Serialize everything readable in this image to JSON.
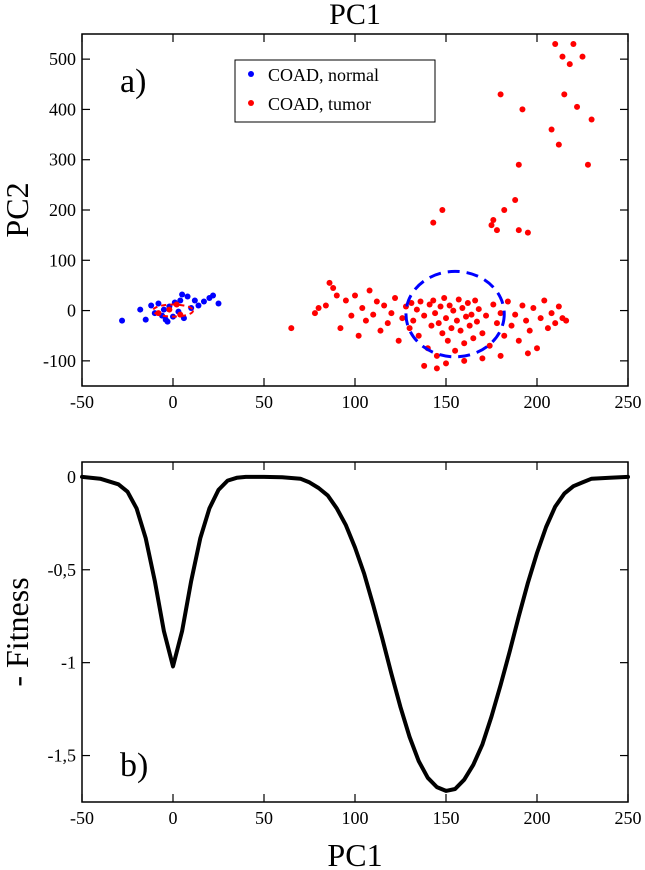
{
  "top_label": "PC1",
  "chart_data": [
    {
      "type": "scatter",
      "panel_label": "a)",
      "xlabel": "",
      "ylabel": "PC2",
      "xlim": [
        -50,
        250
      ],
      "ylim": [
        -150,
        550
      ],
      "xticks": [
        -50,
        0,
        50,
        100,
        150,
        200,
        250
      ],
      "yticks": [
        -100,
        0,
        100,
        200,
        300,
        400,
        500
      ],
      "xtick_labels": [
        "-50",
        "0",
        "50",
        "100",
        "150",
        "200",
        "250"
      ],
      "ytick_labels": [
        "-100",
        "0",
        "100",
        "200",
        "300",
        "400",
        "500"
      ],
      "legend_position": "top-center",
      "series": [
        {
          "name": "COAD, normal",
          "color": "#0000ff",
          "points": [
            [
              -28,
              -20
            ],
            [
              -18,
              2
            ],
            [
              -15,
              -18
            ],
            [
              -12,
              10
            ],
            [
              -10,
              -5
            ],
            [
              -8,
              14
            ],
            [
              -6,
              -10
            ],
            [
              -5,
              2
            ],
            [
              -3,
              -22
            ],
            [
              -2,
              8
            ],
            [
              0,
              -12
            ],
            [
              1,
              16
            ],
            [
              3,
              -2
            ],
            [
              4,
              20
            ],
            [
              6,
              -15
            ],
            [
              8,
              28
            ],
            [
              10,
              5
            ],
            [
              12,
              20
            ],
            [
              14,
              10
            ],
            [
              17,
              18
            ],
            [
              20,
              25
            ],
            [
              22,
              30
            ],
            [
              25,
              14
            ],
            [
              5,
              32
            ],
            [
              -4,
              -18
            ]
          ]
        },
        {
          "name": "COAD, tumor",
          "color": "#ff0000",
          "points": [
            [
              -8,
              -5
            ],
            [
              -2,
              2
            ],
            [
              4,
              -8
            ],
            [
              2,
              12
            ],
            [
              65,
              -35
            ],
            [
              78,
              -5
            ],
            [
              80,
              5
            ],
            [
              84,
              10
            ],
            [
              86,
              55
            ],
            [
              88,
              45
            ],
            [
              90,
              30
            ],
            [
              92,
              -35
            ],
            [
              95,
              20
            ],
            [
              98,
              -10
            ],
            [
              100,
              30
            ],
            [
              102,
              -50
            ],
            [
              104,
              5
            ],
            [
              106,
              -20
            ],
            [
              108,
              40
            ],
            [
              110,
              -8
            ],
            [
              112,
              18
            ],
            [
              114,
              -40
            ],
            [
              116,
              10
            ],
            [
              118,
              -25
            ],
            [
              120,
              -5
            ],
            [
              122,
              25
            ],
            [
              124,
              -60
            ],
            [
              126,
              -15
            ],
            [
              128,
              8
            ],
            [
              130,
              -35
            ],
            [
              131,
              15
            ],
            [
              132,
              -20
            ],
            [
              134,
              2
            ],
            [
              135,
              -50
            ],
            [
              136,
              18
            ],
            [
              138,
              -10
            ],
            [
              140,
              -75
            ],
            [
              141,
              12
            ],
            [
              142,
              -30
            ],
            [
              143,
              20
            ],
            [
              144,
              -5
            ],
            [
              145,
              -90
            ],
            [
              146,
              -25
            ],
            [
              147,
              8
            ],
            [
              148,
              -45
            ],
            [
              149,
              25
            ],
            [
              150,
              -15
            ],
            [
              151,
              -60
            ],
            [
              152,
              10
            ],
            [
              153,
              -35
            ],
            [
              154,
              0
            ],
            [
              155,
              -80
            ],
            [
              156,
              -20
            ],
            [
              157,
              22
            ],
            [
              158,
              -40
            ],
            [
              159,
              5
            ],
            [
              160,
              -65
            ],
            [
              161,
              -12
            ],
            [
              162,
              15
            ],
            [
              163,
              -30
            ],
            [
              164,
              -8
            ],
            [
              165,
              -55
            ],
            [
              166,
              20
            ],
            [
              167,
              -22
            ],
            [
              168,
              3
            ],
            [
              170,
              -45
            ],
            [
              172,
              -10
            ],
            [
              174,
              -70
            ],
            [
              176,
              12
            ],
            [
              178,
              -25
            ],
            [
              180,
              -5
            ],
            [
              182,
              -50
            ],
            [
              184,
              18
            ],
            [
              186,
              -30
            ],
            [
              188,
              -8
            ],
            [
              190,
              -60
            ],
            [
              192,
              10
            ],
            [
              194,
              -20
            ],
            [
              196,
              -40
            ],
            [
              198,
              5
            ],
            [
              200,
              -75
            ],
            [
              202,
              -15
            ],
            [
              204,
              20
            ],
            [
              206,
              -35
            ],
            [
              208,
              -5
            ],
            [
              210,
              -25
            ],
            [
              212,
              8
            ],
            [
              214,
              -15
            ],
            [
              216,
              -20
            ],
            [
              138,
              -110
            ],
            [
              145,
              -115
            ],
            [
              150,
              -105
            ],
            [
              160,
              -100
            ],
            [
              170,
              -95
            ],
            [
              180,
              -90
            ],
            [
              195,
              -85
            ],
            [
              143,
              175
            ],
            [
              148,
              200
            ],
            [
              175,
              170
            ],
            [
              176,
              180
            ],
            [
              178,
              160
            ],
            [
              180,
              430
            ],
            [
              182,
              200
            ],
            [
              188,
              220
            ],
            [
              190,
              160
            ],
            [
              190,
              290
            ],
            [
              192,
              400
            ],
            [
              195,
              155
            ],
            [
              208,
              360
            ],
            [
              210,
              530
            ],
            [
              212,
              330
            ],
            [
              214,
              505
            ],
            [
              215,
              430
            ],
            [
              218,
              490
            ],
            [
              220,
              530
            ],
            [
              222,
              405
            ],
            [
              225,
              505
            ],
            [
              228,
              290
            ],
            [
              230,
              380
            ]
          ]
        }
      ],
      "annotations": [
        {
          "shape": "ellipse",
          "style": "dashed",
          "color": "#0000ff",
          "center": [
            155,
            -7
          ],
          "radii": [
            27,
            85
          ]
        },
        {
          "shape": "ellipse",
          "style": "dashed",
          "color": "#ff0000",
          "center": [
            0,
            0
          ],
          "radii": [
            11,
            12
          ]
        }
      ]
    },
    {
      "type": "line",
      "panel_label": "b)",
      "xlabel": "PC1",
      "ylabel": "- Fitness",
      "xlim": [
        -50,
        250
      ],
      "ylim": [
        -1.75,
        0.08
      ],
      "xticks": [
        -50,
        0,
        50,
        100,
        150,
        200,
        250
      ],
      "yticks": [
        0,
        -0.5,
        -1,
        -1.5
      ],
      "xtick_labels": [
        "-50",
        "0",
        "50",
        "100",
        "150",
        "200",
        "250"
      ],
      "ytick_labels": [
        "0",
        "-0,5",
        "-1",
        "-1,5"
      ],
      "series": [
        {
          "color": "#000000",
          "x": [
            -50,
            -40,
            -30,
            -25,
            -20,
            -15,
            -10,
            -5,
            0,
            5,
            10,
            15,
            20,
            25,
            30,
            35,
            40,
            50,
            60,
            70,
            75,
            80,
            85,
            90,
            95,
            100,
            105,
            110,
            115,
            120,
            125,
            130,
            135,
            140,
            145,
            150,
            155,
            160,
            165,
            170,
            175,
            180,
            185,
            190,
            195,
            200,
            205,
            210,
            215,
            220,
            225,
            230,
            240,
            250
          ],
          "y": [
            0,
            -0.01,
            -0.04,
            -0.08,
            -0.17,
            -0.33,
            -0.56,
            -0.83,
            -1.02,
            -0.83,
            -0.56,
            -0.33,
            -0.17,
            -0.07,
            -0.02,
            -0.005,
            0,
            0,
            -0.002,
            -0.01,
            -0.03,
            -0.06,
            -0.1,
            -0.17,
            -0.26,
            -0.38,
            -0.52,
            -0.69,
            -0.87,
            -1.06,
            -1.24,
            -1.4,
            -1.53,
            -1.62,
            -1.67,
            -1.69,
            -1.68,
            -1.63,
            -1.55,
            -1.44,
            -1.29,
            -1.12,
            -0.94,
            -0.75,
            -0.57,
            -0.41,
            -0.27,
            -0.16,
            -0.09,
            -0.05,
            -0.03,
            -0.01,
            -0.005,
            0
          ]
        }
      ]
    }
  ]
}
